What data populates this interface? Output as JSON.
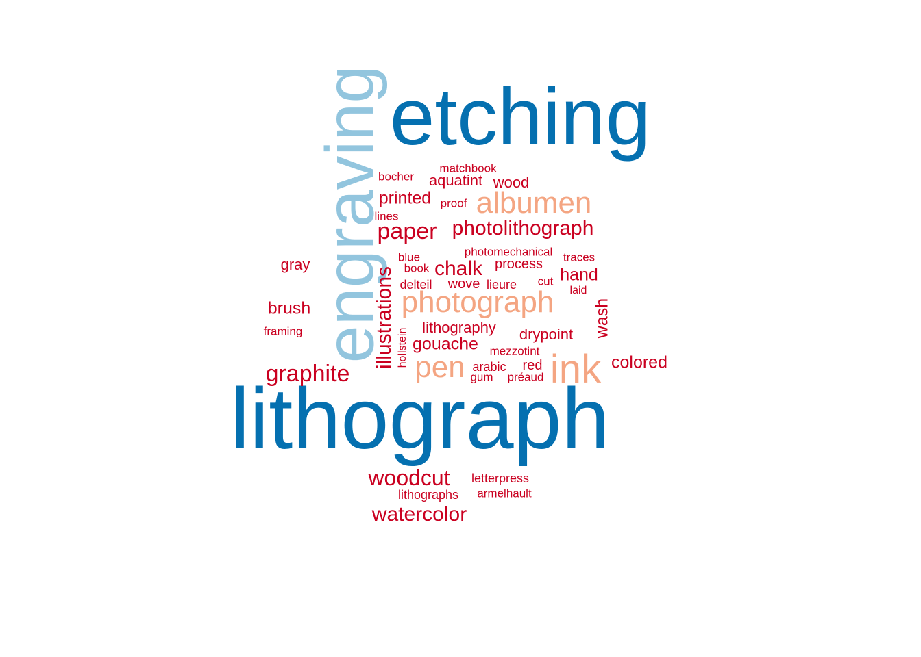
{
  "palette": {
    "dark_blue": "#0570b0",
    "light_blue": "#92c5de",
    "salmon": "#f4a582",
    "red": "#ca0020"
  },
  "words": [
    {
      "key": "lithograph",
      "text": "lithograph",
      "color": "dark_blue",
      "vertical": false
    },
    {
      "key": "etching",
      "text": "etching",
      "color": "dark_blue",
      "vertical": false
    },
    {
      "key": "engraving",
      "text": "engraving",
      "color": "light_blue",
      "vertical": true
    },
    {
      "key": "photograph",
      "text": "photograph",
      "color": "salmon",
      "vertical": false
    },
    {
      "key": "albumen",
      "text": "albumen",
      "color": "salmon",
      "vertical": false
    },
    {
      "key": "ink",
      "text": "ink",
      "color": "salmon",
      "vertical": false
    },
    {
      "key": "pen",
      "text": "pen",
      "color": "salmon",
      "vertical": false
    },
    {
      "key": "graphite",
      "text": "graphite",
      "color": "red",
      "vertical": false
    },
    {
      "key": "woodcut",
      "text": "woodcut",
      "color": "red",
      "vertical": false
    },
    {
      "key": "watercolor",
      "text": "watercolor",
      "color": "red",
      "vertical": false
    },
    {
      "key": "photolithograph",
      "text": "photolithograph",
      "color": "red",
      "vertical": false
    },
    {
      "key": "paper",
      "text": "paper",
      "color": "red",
      "vertical": false
    },
    {
      "key": "illustrations",
      "text": "illustrations",
      "color": "red",
      "vertical": true
    },
    {
      "key": "chalk",
      "text": "chalk",
      "color": "red",
      "vertical": false
    },
    {
      "key": "gouache",
      "text": "gouache",
      "color": "red",
      "vertical": false
    },
    {
      "key": "printed",
      "text": "printed",
      "color": "red",
      "vertical": false
    },
    {
      "key": "colored",
      "text": "colored",
      "color": "red",
      "vertical": false
    },
    {
      "key": "wash",
      "text": "wash",
      "color": "red",
      "vertical": true
    },
    {
      "key": "brush",
      "text": "brush",
      "color": "red",
      "vertical": false
    },
    {
      "key": "hand",
      "text": "hand",
      "color": "red",
      "vertical": false
    },
    {
      "key": "drypoint",
      "text": "drypoint",
      "color": "red",
      "vertical": false
    },
    {
      "key": "lithography",
      "text": "lithography",
      "color": "red",
      "vertical": false
    },
    {
      "key": "wood",
      "text": "wood",
      "color": "red",
      "vertical": false
    },
    {
      "key": "aquatint",
      "text": "aquatint",
      "color": "red",
      "vertical": false
    },
    {
      "key": "gray",
      "text": "gray",
      "color": "red",
      "vertical": false
    },
    {
      "key": "process",
      "text": "process",
      "color": "red",
      "vertical": false
    },
    {
      "key": "red",
      "text": "red",
      "color": "red",
      "vertical": false
    },
    {
      "key": "wove",
      "text": "wove",
      "color": "red",
      "vertical": false
    },
    {
      "key": "lithographs",
      "text": "lithographs",
      "color": "red",
      "vertical": false
    },
    {
      "key": "letterpress",
      "text": "letterpress",
      "color": "red",
      "vertical": false
    },
    {
      "key": "delteil",
      "text": "delteil",
      "color": "red",
      "vertical": false
    },
    {
      "key": "lieure",
      "text": "lieure",
      "color": "red",
      "vertical": false
    },
    {
      "key": "arabic",
      "text": "arabic",
      "color": "red",
      "vertical": false
    },
    {
      "key": "bocher",
      "text": "bocher",
      "color": "red",
      "vertical": false
    },
    {
      "key": "matchbook",
      "text": "matchbook",
      "color": "red",
      "vertical": false
    },
    {
      "key": "photomechanical",
      "text": "photomechanical",
      "color": "red",
      "vertical": false
    },
    {
      "key": "traces",
      "text": "traces",
      "color": "red",
      "vertical": false
    },
    {
      "key": "blue",
      "text": "blue",
      "color": "red",
      "vertical": false
    },
    {
      "key": "book",
      "text": "book",
      "color": "red",
      "vertical": false
    },
    {
      "key": "mezzotint",
      "text": "mezzotint",
      "color": "red",
      "vertical": false
    },
    {
      "key": "framing",
      "text": "framing",
      "color": "red",
      "vertical": false
    },
    {
      "key": "cut",
      "text": "cut",
      "color": "red",
      "vertical": false
    },
    {
      "key": "armelhault",
      "text": "armelhault",
      "color": "red",
      "vertical": false
    },
    {
      "key": "proof",
      "text": "proof",
      "color": "red",
      "vertical": false
    },
    {
      "key": "lines",
      "text": "lines",
      "color": "red",
      "vertical": false
    },
    {
      "key": "gum",
      "text": "gum",
      "color": "red",
      "vertical": false
    },
    {
      "key": "preaud",
      "text": "préaud",
      "color": "red",
      "vertical": false
    },
    {
      "key": "laid",
      "text": "laid",
      "color": "red",
      "vertical": false
    },
    {
      "key": "hollstein",
      "text": "hollstein",
      "color": "red",
      "vertical": true
    }
  ]
}
